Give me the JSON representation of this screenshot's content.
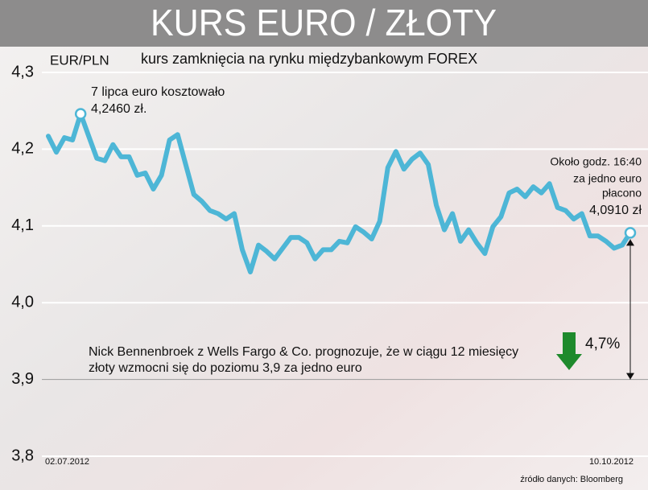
{
  "chart_data": {
    "type": "line",
    "title": "KURS EURO / ZŁOTY",
    "subtitle": "kurs zamknięcia na rynku międzybankowym FOREX",
    "y_label": "EUR/PLN",
    "start_note": [
      "7 lipca euro kosztowało",
      "4,2460 zł."
    ],
    "end_note": [
      "Około godz. 16:40",
      "za jedno euro",
      "płacono",
      "4,0910 zł"
    ],
    "forecast_note": [
      "Nick Bennenbroek z Wells Fargo & Co. prognozuje, że w ciągu 12 miesięcy",
      "złoty wzmocni się do poziomu 3,9 za jedno euro"
    ],
    "change_label": "4,7%",
    "source": "źródło danych: Bloomberg",
    "categories": [
      "02.07.2012",
      null,
      null,
      null,
      null,
      null,
      null,
      null,
      null,
      null,
      null,
      null,
      null,
      null,
      null,
      null,
      null,
      null,
      null,
      null,
      null,
      null,
      null,
      null,
      null,
      null,
      null,
      null,
      null,
      null,
      null,
      null,
      null,
      null,
      null,
      null,
      null,
      null,
      null,
      null,
      null,
      null,
      null,
      null,
      null,
      null,
      null,
      null,
      null,
      null,
      null,
      null,
      null,
      null,
      null,
      null,
      null,
      null,
      null,
      null,
      null,
      null,
      null,
      null,
      null,
      null,
      null,
      null,
      null,
      null,
      null,
      null,
      "10.10.2012"
    ],
    "values": [
      4.217,
      4.196,
      4.215,
      4.212,
      4.246,
      4.217,
      4.188,
      4.185,
      4.206,
      4.19,
      4.19,
      4.166,
      4.169,
      4.148,
      4.166,
      4.212,
      4.219,
      4.18,
      4.141,
      4.132,
      4.12,
      4.116,
      4.109,
      4.116,
      4.069,
      4.04,
      4.075,
      4.067,
      4.057,
      4.071,
      4.085,
      4.085,
      4.078,
      4.057,
      4.069,
      4.069,
      4.08,
      4.078,
      4.099,
      4.092,
      4.083,
      4.106,
      4.176,
      4.197,
      4.174,
      4.187,
      4.195,
      4.18,
      4.127,
      4.095,
      4.116,
      4.08,
      4.095,
      4.078,
      4.064,
      4.099,
      4.112,
      4.143,
      4.148,
      4.138,
      4.151,
      4.143,
      4.155,
      4.124,
      4.12,
      4.109,
      4.116,
      4.087,
      4.087,
      4.08,
      4.071,
      4.075,
      4.091
    ],
    "color": "#4db6d6",
    "highlight": [
      4,
      72
    ],
    "ylim": [
      3.8,
      4.3
    ],
    "yticks": [
      {
        "value": 3.8,
        "label": "3,8"
      },
      {
        "value": 3.9,
        "label": "3,9"
      },
      {
        "value": 4.0,
        "label": "4,0"
      },
      {
        "value": 4.1,
        "label": "4,1"
      },
      {
        "value": 4.2,
        "label": "4,2"
      },
      {
        "value": 4.3,
        "label": "4,3"
      }
    ],
    "grid": true
  }
}
